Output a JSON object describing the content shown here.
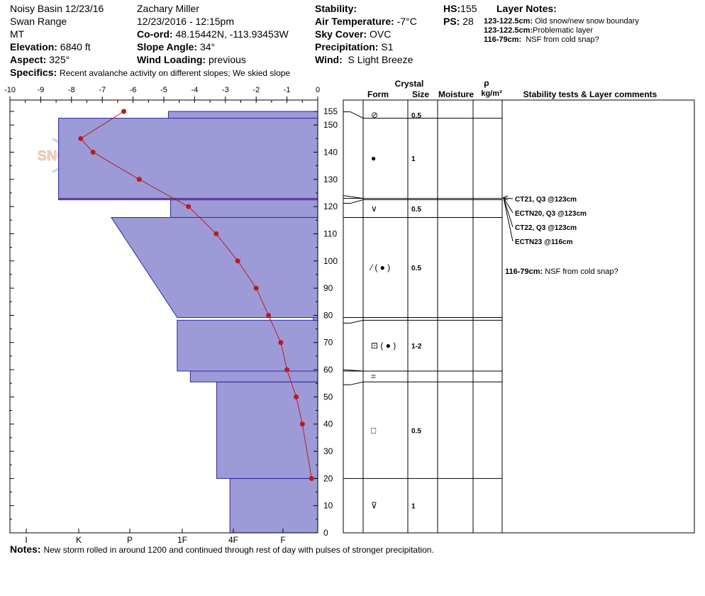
{
  "header": {
    "site": "Noisy Basin 12/23/16",
    "range": "Swan Range",
    "state": "MT",
    "elevation_label": "Elevation:",
    "elevation": "6840 ft",
    "aspect_label": "Aspect:",
    "aspect": "325°",
    "observer": "Zachary Miller",
    "datetime": "12/23/2016 - 12:15pm",
    "coord_label": "Co-ord:",
    "coord": "48.15442N, -113.93453W",
    "slope_label": "Slope Angle:",
    "slope": "34°",
    "wind_loading_label": "Wind Loading:",
    "wind_loading": "previous",
    "stability_label": "Stability:",
    "air_temp_label": "Air Temperature:",
    "air_temp": "-7°C",
    "sky_label": "Sky Cover:",
    "sky": "OVC",
    "precip_label": "Precipitation:",
    "precip": "S1",
    "wind_label": "Wind:",
    "wind": "S Light Breeze",
    "hs_label": "HS:",
    "hs": "155",
    "ps_label": "PS:",
    "ps": "28",
    "specifics_label": "Specifics:",
    "specifics": "Recent avalanche activity on different slopes;  We skied slope",
    "notes_label": "Notes:",
    "notes": "New storm rolled in around 1200 and continued through rest of day with pulses of stronger precipitation."
  },
  "layer_notes": {
    "title": "Layer Notes:",
    "items": [
      {
        "range": "123-122.5cm:",
        "text": "Old snow/new snow boundary"
      },
      {
        "range": "123-122.5cm:",
        "text": "Problematic layer"
      },
      {
        "range": "116-79cm:",
        "text": "NSF from cold snap?"
      }
    ]
  },
  "watermark": "SNOW PILOT",
  "chart_data": {
    "type": "line",
    "x_axis_label_values": [
      "-10",
      "-9",
      "-8",
      "-7",
      "-6",
      "-5",
      "-4",
      "-3",
      "-2",
      "-1",
      "0"
    ],
    "hardness_labels": [
      "I",
      "K",
      "P",
      "1F",
      "4F",
      "F"
    ],
    "hardness_scale": {
      "I": 0,
      "K": 1,
      "P": 2,
      "1F": 3,
      "4F": 4,
      "F": 5
    },
    "y_ticks": [
      "0",
      "10",
      "20",
      "30",
      "40",
      "50",
      "60",
      "70",
      "80",
      "90",
      "100",
      "110",
      "120",
      "130",
      "140",
      "150",
      "155"
    ],
    "xlim": [
      -10,
      0
    ],
    "ylim": [
      0,
      155
    ],
    "temperature_profile": {
      "depth": [
        155,
        145,
        140,
        130,
        120,
        110,
        100,
        90,
        80,
        70,
        60,
        50,
        40,
        20
      ],
      "temp": [
        -6.3,
        -7.7,
        -7.3,
        -5.8,
        -4.2,
        -3.3,
        -2.6,
        -2.0,
        -1.6,
        -1.2,
        -1.0,
        -0.7,
        -0.5,
        -0.2
      ]
    },
    "hardness_profile": [
      {
        "bottom": 0,
        "top": 20,
        "hardness": 2.0
      },
      {
        "bottom": 20,
        "top": 55.5,
        "hardness": 2.3
      },
      {
        "bottom": 55.5,
        "top": 59.5,
        "hardness": 2.9
      },
      {
        "bottom": 59.5,
        "top": 78.2,
        "hardness": 3.2
      },
      {
        "bottom": 78.2,
        "top": 79.2,
        "hardness": 0.1
      },
      {
        "bottom": 79.2,
        "top": 116,
        "hardness": 3.2,
        "top_hardness": 4.7
      },
      {
        "bottom": 116,
        "top": 122.5,
        "hardness": 4.7,
        "band": [
          116,
          122.5,
          3.35
        ]
      },
      {
        "bottom": 122.5,
        "top": 123,
        "hardness": 5.9,
        "red": true
      },
      {
        "bottom": 123,
        "top": 152.5,
        "hardness": 5.9
      },
      {
        "bottom": 152.5,
        "top": 155,
        "hardness": 3.4
      }
    ]
  },
  "table": {
    "headers": {
      "crystal": "Crystal",
      "form": "Form",
      "size": "Size",
      "moisture": "Moisture",
      "rho": "ρ",
      "density_unit": "kg/m³",
      "comments": "Stability tests & Layer comments"
    },
    "layers": [
      {
        "bottom": 152.5,
        "top": 155,
        "form": "⊘",
        "size": "0.5"
      },
      {
        "bottom": 123,
        "top": 152.5,
        "form": "●",
        "size": "1"
      },
      {
        "bottom": 122.5,
        "top": 123,
        "form": "",
        "size": ""
      },
      {
        "bottom": 116,
        "top": 122.5,
        "form": "∨",
        "size": "0.5"
      },
      {
        "bottom": 79.2,
        "top": 116,
        "form": "⁄ ( ● )",
        "size": "0.5"
      },
      {
        "bottom": 78.2,
        "top": 79.2,
        "form": "",
        "size": ""
      },
      {
        "bottom": 59.5,
        "top": 78.2,
        "form": "⊡ ( ● )",
        "size": "1-2"
      },
      {
        "bottom": 55.5,
        "top": 59.5,
        "form": "=",
        "size": ""
      },
      {
        "bottom": 20,
        "top": 55.5,
        "form": "□",
        "size": "0.5"
      },
      {
        "bottom": 0,
        "top": 20,
        "form": "⊽",
        "size": "1"
      }
    ],
    "stability_tests": [
      {
        "label": "CT21, Q3 @123cm"
      },
      {
        "label": "ECTN20, Q3 @123cm"
      },
      {
        "label": "CT22, Q3 @123cm"
      },
      {
        "label": "ECTN23 @116cm"
      }
    ],
    "comment": {
      "range": "116-79cm:",
      "text": "NSF from cold snap?"
    }
  }
}
